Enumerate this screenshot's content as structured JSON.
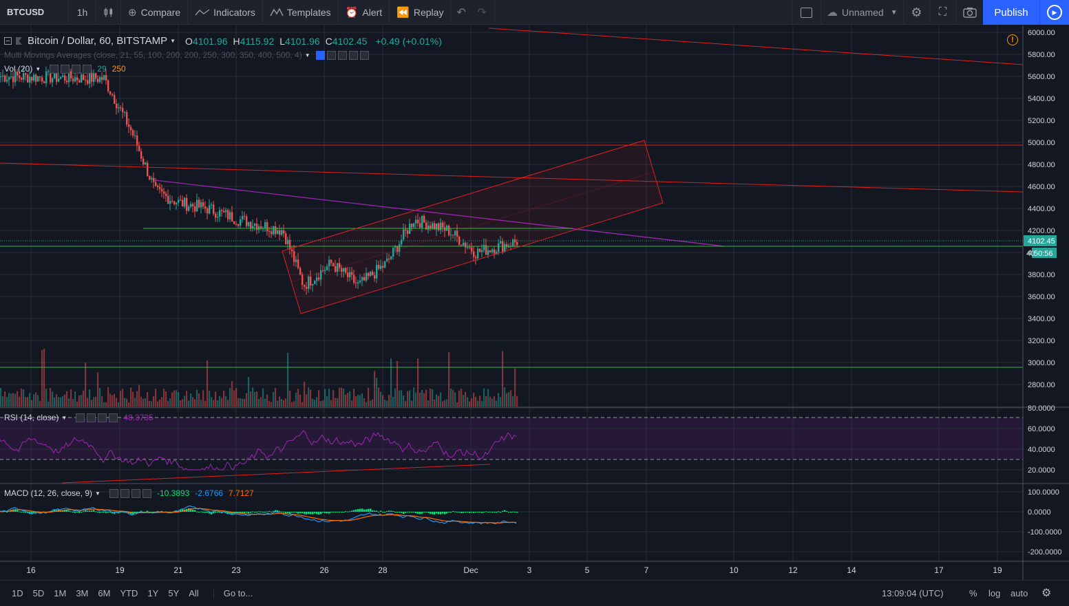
{
  "toolbar": {
    "symbol": "BTCUSD",
    "interval": "1h",
    "compare": "Compare",
    "indicators": "Indicators",
    "templates": "Templates",
    "alert": "Alert",
    "replay": "Replay",
    "layout_name": "Unnamed",
    "publish": "Publish"
  },
  "legend": {
    "title": "Bitcoin / Dollar, 60, BITSTAMP",
    "o_label": "O",
    "o": "4101.96",
    "h_label": "H",
    "h": "4115.92",
    "l_label": "L",
    "l": "4101.96",
    "c_label": "C",
    "c": "4102.45",
    "change": "+0.49 (+0.01%)"
  },
  "indicators": {
    "mma": "Multi Movings Averages (close, 21, 55, 100, 200, 200, 250, 300, 350, 400, 500, 4)",
    "vol_label": "Vol (20)",
    "vol_v1": "29",
    "vol_v2": "250",
    "rsi_label": "RSI (14, close)",
    "rsi_value": "48.3735",
    "macd_label": "MACD (12, 26, close, 9)",
    "macd_v1": "-10.3893",
    "macd_v2": "-2.6766",
    "macd_v3": "7.7127"
  },
  "price_axis": {
    "labels": [
      "6000.00",
      "5800.00",
      "5600.00",
      "5400.00",
      "5200.00",
      "5000.00",
      "4800.00",
      "4600.00",
      "4400.00",
      "4200.00",
      "4000.00",
      "3800.00",
      "3600.00",
      "3400.00",
      "3200.00",
      "3000.00",
      "2800.00"
    ],
    "current_price": "4102.45",
    "countdown": "50:56",
    "covered_label": "40"
  },
  "rsi_axis": {
    "labels": [
      "80.0000",
      "60.0000",
      "40.0000",
      "20.0000"
    ]
  },
  "macd_axis": {
    "labels": [
      "100.0000",
      "0.0000",
      "-100.0000",
      "-200.0000"
    ]
  },
  "time_axis": {
    "labels": [
      "16",
      "19",
      "21",
      "23",
      "26",
      "28",
      "Dec",
      "3",
      "5",
      "7",
      "10",
      "12",
      "14",
      "17",
      "19"
    ]
  },
  "bottom": {
    "ranges": [
      "1D",
      "5D",
      "1M",
      "3M",
      "6M",
      "YTD",
      "1Y",
      "5Y",
      "All"
    ],
    "goto": "Go to...",
    "clock": "13:09:04 (UTC)",
    "percent": "%",
    "log": "log",
    "auto": "auto"
  },
  "colors": {
    "bg": "#131722",
    "up": "#26a69a",
    "down": "#ef5350",
    "accent": "#2962ff",
    "drawing_red": "#e31f1f",
    "drawing_green": "#2ebd40",
    "drawing_purple": "#9c27b0",
    "rsi": "#9c27b0",
    "macd_line": "#2196f3",
    "signal_line": "#ff6d00",
    "hist": "#00e676"
  },
  "chart_data": {
    "type": "candlestick",
    "symbol": "BTCUSD",
    "interval": "60",
    "ylim": [
      2700,
      6050
    ],
    "anchor_prices": [
      {
        "date": "Nov 15",
        "close": 5600
      },
      {
        "date": "Nov 18",
        "close": 5580
      },
      {
        "date": "Nov 19",
        "close": 5100
      },
      {
        "date": "Nov 20",
        "close": 4550
      },
      {
        "date": "Nov 21",
        "close": 4450
      },
      {
        "date": "Nov 22",
        "close": 4400
      },
      {
        "date": "Nov 23",
        "close": 4300
      },
      {
        "date": "Nov 24",
        "close": 4200
      },
      {
        "date": "Nov 25",
        "close": 3700
      },
      {
        "date": "Nov 26",
        "close": 3900
      },
      {
        "date": "Nov 27",
        "close": 3700
      },
      {
        "date": "Nov 28",
        "close": 3900
      },
      {
        "date": "Nov 29",
        "close": 4300
      },
      {
        "date": "Nov 30",
        "close": 4200
      },
      {
        "date": "Dec 1",
        "close": 4000
      },
      {
        "date": "Dec 2",
        "close": 4100
      }
    ],
    "horizontal_lines": [
      4980,
      4050,
      2950
    ],
    "rsi_bands": [
      30,
      70
    ],
    "rsi_ylim": [
      10,
      80
    ],
    "macd_ylim": [
      -230,
      120
    ]
  }
}
